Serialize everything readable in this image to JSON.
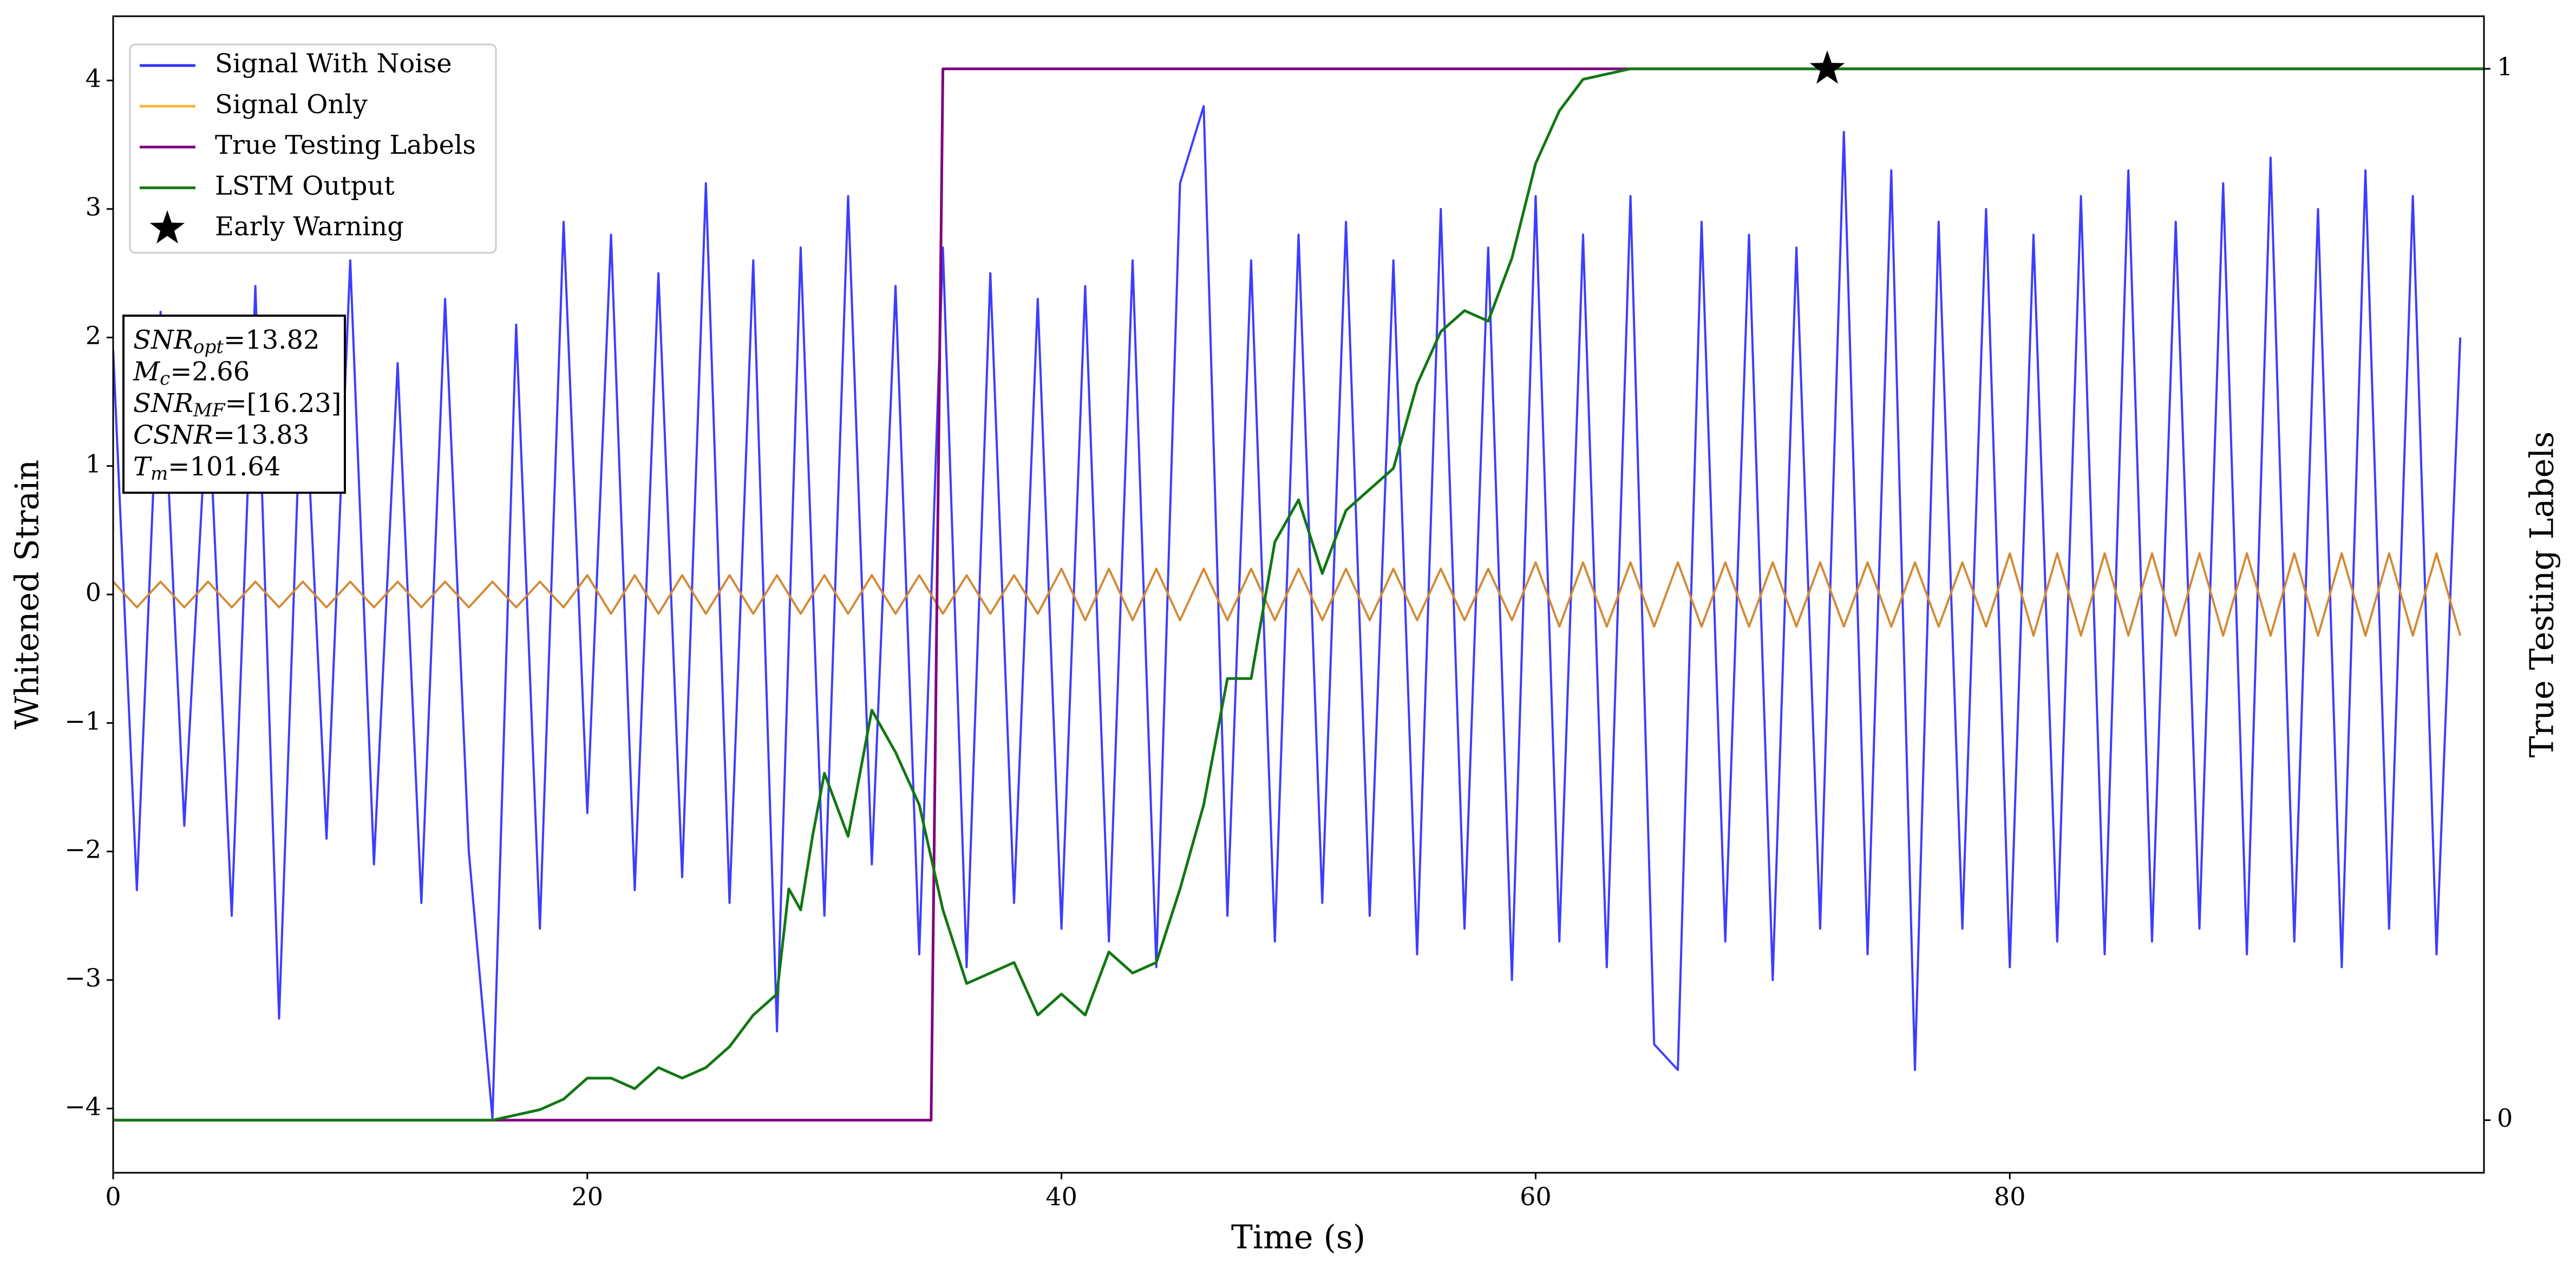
{
  "chart_data": {
    "type": "line",
    "xlabel": "Time (s)",
    "ylabel": "Whitened Strain",
    "y2label": "True Testing Labels",
    "xlim": [
      0,
      100
    ],
    "ylim": [
      -4.5,
      4.5
    ],
    "y2lim": [
      -0.05,
      1.05
    ],
    "xticks": [
      0,
      20,
      40,
      60,
      80
    ],
    "yticks": [
      {
        "value": -4,
        "label": "−4"
      },
      {
        "value": -3,
        "label": "−3"
      },
      {
        "value": -2,
        "label": "−2"
      },
      {
        "value": -1,
        "label": "−1"
      },
      0,
      1,
      2,
      3,
      4
    ],
    "y2ticks": [
      0,
      1
    ],
    "legend": "upper left",
    "x": [
      0,
      1,
      2,
      3,
      4,
      5,
      6,
      7,
      8,
      9,
      10,
      11,
      12,
      13,
      14,
      15,
      16,
      17,
      18,
      19,
      20,
      21,
      22,
      23,
      24,
      25,
      26,
      27,
      28,
      29,
      30,
      31,
      32,
      33,
      34,
      35,
      36,
      37,
      38,
      39,
      40,
      41,
      42,
      43,
      44,
      45,
      46,
      47,
      48,
      49,
      50,
      51,
      52,
      53,
      54,
      55,
      56,
      57,
      58,
      59,
      60,
      61,
      62,
      63,
      64,
      65,
      66,
      67,
      68,
      69,
      70,
      71,
      72,
      73,
      74,
      75,
      76,
      77,
      78,
      79,
      80,
      81,
      82,
      83,
      84,
      85,
      86,
      87,
      88,
      89,
      90,
      91,
      92,
      93,
      94,
      95,
      96,
      97,
      98,
      99
    ],
    "series": [
      {
        "name": "Signal With Noise",
        "color": "#3333ff",
        "values": [
          1.9,
          -2.3,
          2.2,
          -1.8,
          1.6,
          -2.5,
          2.4,
          -3.3,
          2.0,
          -1.9,
          2.6,
          -2.1,
          1.8,
          -2.4,
          2.3,
          -2.0,
          -4.08,
          2.1,
          -2.6,
          2.9,
          -1.7,
          2.8,
          -2.3,
          2.5,
          -2.2,
          3.2,
          -2.4,
          2.6,
          -3.4,
          2.7,
          -2.5,
          3.1,
          -2.1,
          2.4,
          -2.8,
          2.7,
          -2.9,
          2.5,
          -2.4,
          2.3,
          -2.6,
          2.4,
          -2.7,
          2.6,
          -2.9,
          3.2,
          3.8,
          -2.5,
          2.6,
          -2.7,
          2.8,
          -2.4,
          2.9,
          -2.5,
          2.6,
          -2.8,
          3.0,
          -2.6,
          2.7,
          -3.0,
          3.1,
          -2.7,
          2.8,
          -2.9,
          3.1,
          -3.5,
          -3.7,
          2.9,
          -2.7,
          2.8,
          -3.0,
          2.7,
          -2.6,
          3.6,
          -2.8,
          3.3,
          -3.7,
          2.9,
          -2.6,
          3.0,
          -2.9,
          2.8,
          -2.7,
          3.1,
          -2.8,
          3.3,
          -2.7,
          2.9,
          -2.6,
          3.2,
          -2.8,
          3.4,
          -2.7,
          3.0,
          -2.9,
          3.3,
          -2.6,
          3.1,
          -2.8,
          2.0
        ]
      },
      {
        "name": "Signal Only",
        "color": "#f5b942",
        "values": [
          0.1,
          -0.1,
          0.1,
          -0.1,
          0.1,
          -0.1,
          0.1,
          -0.1,
          0.1,
          -0.1,
          0.1,
          -0.1,
          0.1,
          -0.1,
          0.1,
          -0.1,
          0.1,
          -0.1,
          0.1,
          -0.1,
          0.15,
          -0.15,
          0.15,
          -0.15,
          0.15,
          -0.15,
          0.15,
          -0.15,
          0.15,
          -0.15,
          0.15,
          -0.15,
          0.15,
          -0.15,
          0.15,
          -0.15,
          0.15,
          -0.15,
          0.15,
          -0.15,
          0.2,
          -0.2,
          0.2,
          -0.2,
          0.2,
          -0.2,
          0.2,
          -0.2,
          0.2,
          -0.2,
          0.2,
          -0.2,
          0.2,
          -0.2,
          0.2,
          -0.2,
          0.2,
          -0.2,
          0.2,
          -0.2,
          0.25,
          -0.25,
          0.25,
          -0.25,
          0.25,
          -0.25,
          0.25,
          -0.25,
          0.25,
          -0.25,
          0.25,
          -0.25,
          0.25,
          -0.25,
          0.25,
          -0.25,
          0.25,
          -0.25,
          0.25,
          -0.25,
          0.32,
          -0.32,
          0.32,
          -0.32,
          0.32,
          -0.32,
          0.32,
          -0.32,
          0.32,
          -0.32,
          0.32,
          -0.32,
          0.32,
          -0.32,
          0.32,
          -0.32,
          0.32,
          -0.32,
          0.32,
          -0.32
        ]
      },
      {
        "name": "True Testing Labels",
        "color": "#800080",
        "axis": "y2",
        "x": [
          0,
          34.5,
          35,
          100
        ],
        "values": [
          0,
          0,
          1,
          1
        ]
      },
      {
        "name": "LSTM Output",
        "color": "#117711",
        "axis": "y2",
        "x": [
          0,
          16,
          17,
          18,
          19,
          20,
          21,
          22,
          23,
          24,
          25,
          26,
          27,
          28,
          28.5,
          29,
          29.5,
          30,
          31,
          32,
          33,
          34,
          35,
          36,
          37,
          38,
          39,
          40,
          41,
          42,
          43,
          44,
          45,
          46,
          47,
          48,
          49,
          50,
          51,
          52,
          53,
          54,
          55,
          56,
          57,
          58,
          59,
          60,
          61,
          62,
          64,
          70,
          100
        ],
        "values": [
          0,
          0,
          0.005,
          0.01,
          0.02,
          0.04,
          0.04,
          0.03,
          0.05,
          0.04,
          0.05,
          0.07,
          0.1,
          0.12,
          0.22,
          0.2,
          0.27,
          0.33,
          0.27,
          0.39,
          0.35,
          0.3,
          0.2,
          0.13,
          0.14,
          0.15,
          0.1,
          0.12,
          0.1,
          0.16,
          0.14,
          0.15,
          0.22,
          0.3,
          0.42,
          0.42,
          0.55,
          0.59,
          0.52,
          0.58,
          0.6,
          0.62,
          0.7,
          0.75,
          0.77,
          0.76,
          0.82,
          0.91,
          0.96,
          0.99,
          1.0,
          1.0,
          1.0
        ]
      },
      {
        "name": "Early Warning",
        "color": "#000000",
        "axis": "y2",
        "marker": "star",
        "x": [
          72.3
        ],
        "values": [
          1.0
        ]
      }
    ],
    "annotations": [
      {
        "base": "SNR",
        "sub": "opt",
        "text": "=13.82"
      },
      {
        "base": "M",
        "sub": "c",
        "text": "=2.66"
      },
      {
        "base": "SNR",
        "sub": "MF",
        "text": "=[16.23]"
      },
      {
        "base": "CSNR",
        "text": "=13.83"
      },
      {
        "base": "T",
        "sub": "m",
        "text": "=101.64"
      }
    ]
  }
}
